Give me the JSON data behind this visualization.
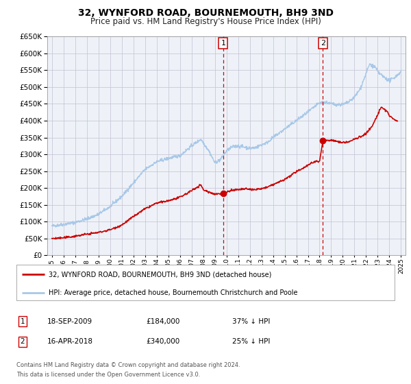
{
  "title": "32, WYNFORD ROAD, BOURNEMOUTH, BH9 3ND",
  "subtitle": "Price paid vs. HM Land Registry's House Price Index (HPI)",
  "ylim": [
    0,
    650000
  ],
  "yticks": [
    0,
    50000,
    100000,
    150000,
    200000,
    250000,
    300000,
    350000,
    400000,
    450000,
    500000,
    550000,
    600000,
    650000
  ],
  "xlim_start": 1994.6,
  "xlim_end": 2025.4,
  "hpi_color": "#a8c8e8",
  "price_color": "#cc0000",
  "dot_color": "#cc0000",
  "vline_color": "#cc0000",
  "grid_color": "#c8c8d8",
  "bg_color": "#eef2f8",
  "sale1_x": 2009.72,
  "sale1_y": 184000,
  "sale2_x": 2018.29,
  "sale2_y": 340000,
  "label1": "1",
  "label2": "2",
  "legend_price": "32, WYNFORD ROAD, BOURNEMOUTH, BH9 3ND (detached house)",
  "legend_hpi": "HPI: Average price, detached house, Bournemouth Christchurch and Poole",
  "table_row1": [
    "1",
    "18-SEP-2009",
    "£184,000",
    "37% ↓ HPI"
  ],
  "table_row2": [
    "2",
    "16-APR-2018",
    "£340,000",
    "25% ↓ HPI"
  ],
  "footnote1": "Contains HM Land Registry data © Crown copyright and database right 2024.",
  "footnote2": "This data is licensed under the Open Government Licence v3.0."
}
